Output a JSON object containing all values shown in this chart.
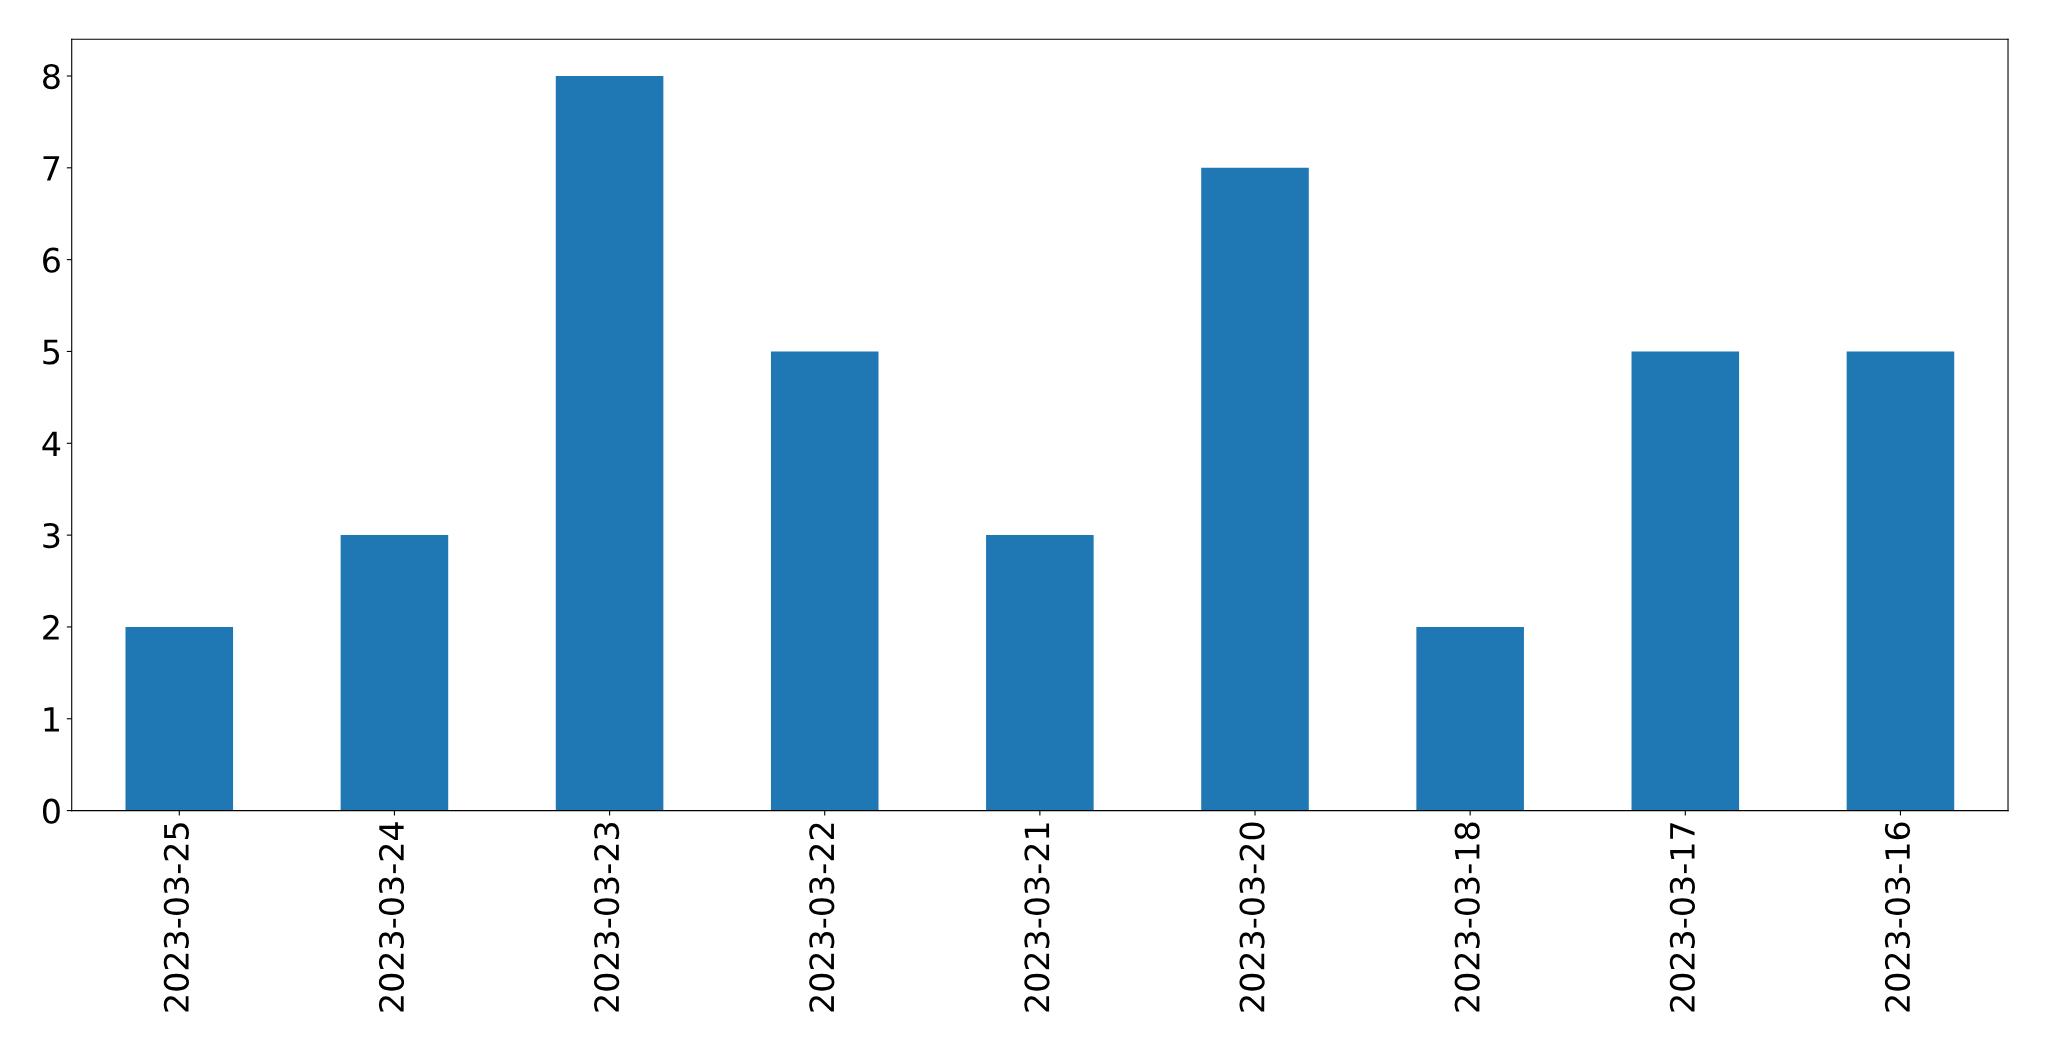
{
  "chart_data": {
    "type": "bar",
    "categories": [
      "2023-03-25",
      "2023-03-24",
      "2023-03-23",
      "2023-03-22",
      "2023-03-21",
      "2023-03-20",
      "2023-03-18",
      "2023-03-17",
      "2023-03-16"
    ],
    "values": [
      2,
      3,
      8,
      5,
      3,
      7,
      2,
      5,
      5
    ],
    "color": "#1f77b4",
    "ylim": [
      0,
      8.4
    ],
    "yticks": [
      0,
      1,
      2,
      3,
      4,
      5,
      6,
      7,
      8
    ],
    "grid": false
  }
}
